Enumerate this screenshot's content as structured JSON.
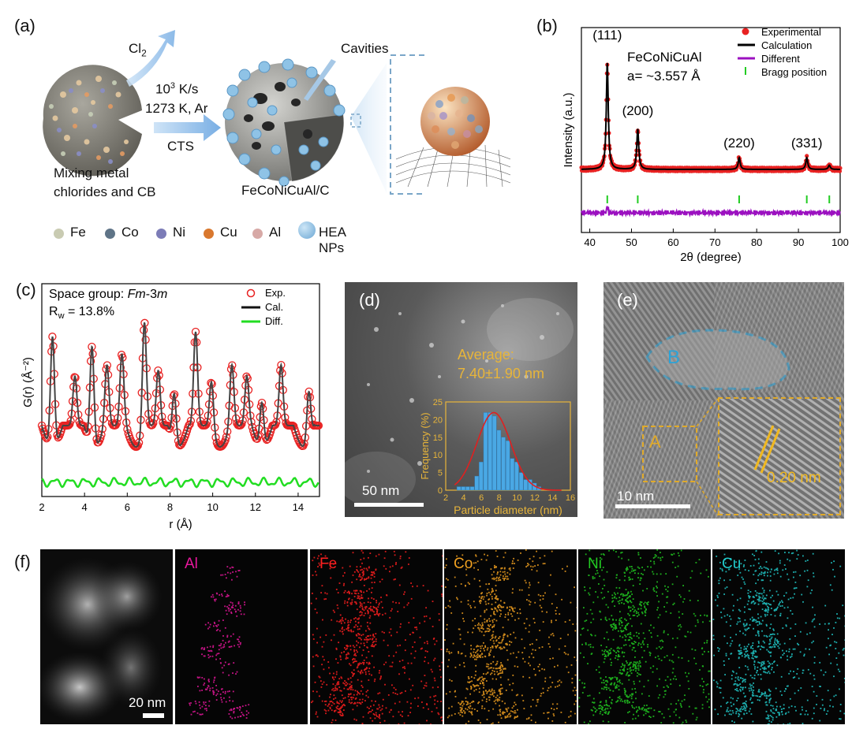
{
  "panels": {
    "a": {
      "label": "(a)",
      "cl2": "Cl",
      "cl2_sub": "2",
      "cond1_base": "10",
      "cond1_sup": "3",
      "cond1_rest": " K/s",
      "cond2": "1273 K, Ar",
      "cts": "CTS",
      "cavities": "Cavities",
      "left_caption_1": "Mixing metal",
      "left_caption_2": "chlorides and CB",
      "right_caption": "FeCoNiCuAl/C",
      "legend": [
        {
          "label": "Fe",
          "color": "#c9cbb2"
        },
        {
          "label": "Co",
          "color": "#5f7487"
        },
        {
          "label": "Ni",
          "color": "#7c7cb7"
        },
        {
          "label": "Cu",
          "color": "#d9782e"
        },
        {
          "label": "Al",
          "color": "#d7a9a6"
        }
      ],
      "hea_label": "HEA NPs"
    },
    "b": {
      "label": "(b)"
    },
    "c": {
      "label": "(c)"
    },
    "d": {
      "label": "(d)",
      "avg_line1": "Average:",
      "avg_line2": "7.40±1.90 nm",
      "scale": "50 nm"
    },
    "e": {
      "label": "(e)",
      "region_b": "B",
      "region_a": "A",
      "lattice": "0.20 nm",
      "scale": "10 nm"
    },
    "f": {
      "label": "(f)",
      "scale": "20 nm",
      "maps": [
        {
          "label": "Al",
          "color": "#e8179d"
        },
        {
          "label": "Fe",
          "color": "#ff2020"
        },
        {
          "label": "Co",
          "color": "#f0a020"
        },
        {
          "label": "Ni",
          "color": "#22cc22"
        },
        {
          "label": "Cu",
          "color": "#22cccc"
        }
      ]
    }
  },
  "chart_data": [
    {
      "id": "b",
      "type": "line",
      "title": "FeCoNiCuAl",
      "annotation": "a= ~3.557 Å",
      "xlabel": "2θ (degree)",
      "ylabel": "Intensity (a.u.)",
      "xlim": [
        38,
        100
      ],
      "xticks": [
        40,
        50,
        60,
        70,
        80,
        90,
        100
      ],
      "legend": [
        "Experimental",
        "Calculation",
        "Different",
        "Bragg position"
      ],
      "peaks": [
        {
          "label": "(111)",
          "x": 44.2,
          "rel": 1.0
        },
        {
          "label": "(200)",
          "x": 51.5,
          "rel": 0.38
        },
        {
          "label": "(220)",
          "x": 75.8,
          "rel": 0.11
        },
        {
          "label": "(331)",
          "x": 92.0,
          "rel": 0.11
        },
        {
          "label": "",
          "x": 97.4,
          "rel": 0.04
        }
      ],
      "bragg_positions": [
        44.2,
        51.5,
        75.8,
        92.0,
        97.4
      ]
    },
    {
      "id": "c",
      "type": "line",
      "title": "Space group: Fm-3m",
      "sg_prefix": "Space group: ",
      "sg_italic_1": "Fm",
      "sg_mid": "-3",
      "sg_italic_2": "m",
      "rw_prefix": "R",
      "rw_sub": "w",
      "rw_value": " = 13.8%",
      "xlabel": "r (Å)",
      "ylabel": "G(r) (Å⁻²)",
      "xlim": [
        2,
        15
      ],
      "xticks": [
        2,
        4,
        6,
        8,
        10,
        12,
        14
      ],
      "legend": [
        "Exp.",
        "Cal.",
        "Diff."
      ],
      "peaks": [
        {
          "r": 2.5,
          "h": 1.0
        },
        {
          "r": 3.55,
          "h": 0.45
        },
        {
          "r": 4.35,
          "h": 0.9
        },
        {
          "r": 5.05,
          "h": 0.55
        },
        {
          "r": 5.75,
          "h": 0.65
        },
        {
          "r": 6.8,
          "h": 1.0
        },
        {
          "r": 7.45,
          "h": 0.5
        },
        {
          "r": 8.2,
          "h": 0.45
        },
        {
          "r": 9.2,
          "h": 0.85
        },
        {
          "r": 9.95,
          "h": 0.45
        },
        {
          "r": 10.9,
          "h": 0.55
        },
        {
          "r": 11.6,
          "h": 0.45
        },
        {
          "r": 12.3,
          "h": 0.4
        },
        {
          "r": 13.2,
          "h": 0.55
        },
        {
          "r": 14.5,
          "h": 0.45
        }
      ]
    },
    {
      "id": "d-inset",
      "type": "bar",
      "xlabel": "Particle diameter (nm)",
      "ylabel": "Frequency (%)",
      "xlim": [
        2,
        16
      ],
      "ylim": [
        0,
        25
      ],
      "xticks": [
        2,
        4,
        6,
        8,
        10,
        12,
        14,
        16
      ],
      "yticks": [
        0,
        5,
        10,
        15,
        20,
        25
      ],
      "bin_width": 0.5,
      "x": [
        3.5,
        4.0,
        4.5,
        5.0,
        5.5,
        6.0,
        6.5,
        7.0,
        7.5,
        8.0,
        8.5,
        9.0,
        9.5,
        10.0,
        10.5,
        11.0,
        11.5,
        12.0,
        12.5
      ],
      "values": [
        1,
        1,
        1,
        1,
        4,
        8,
        22,
        22,
        21,
        17,
        15,
        14,
        9,
        8,
        5,
        3,
        3,
        2,
        1
      ],
      "fit": {
        "mean": 7.4,
        "sd": 1.9,
        "peak": 22
      }
    }
  ]
}
